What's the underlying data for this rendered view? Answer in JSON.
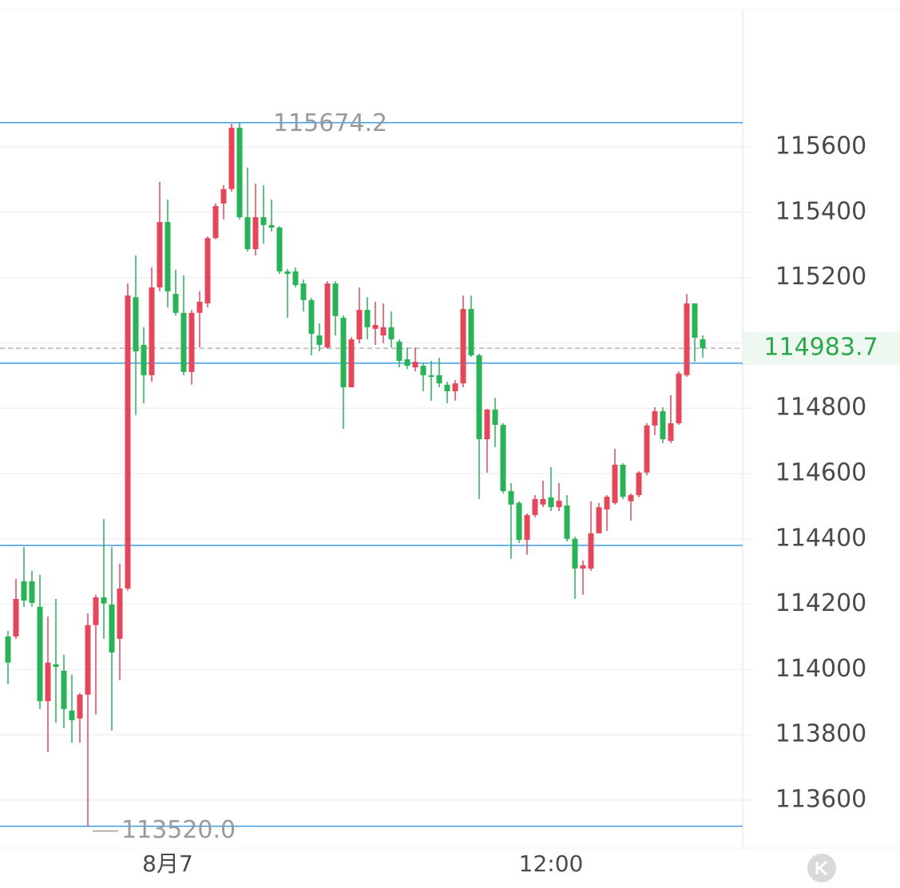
{
  "chart_data": {
    "type": "candlestick",
    "up_color": "#e5475a",
    "down_color": "#27b356",
    "line_color": "#3d9be9",
    "grid": true,
    "xlim": [
      -1,
      92
    ],
    "ylim": [
      113458,
      116050
    ],
    "yticks": [
      113600,
      113800,
      114000,
      114200,
      114400,
      114600,
      114800,
      115000,
      115200,
      115400,
      115600
    ],
    "xticks": [
      {
        "value": 20,
        "label": "8月7"
      },
      {
        "value": 68,
        "label": "12:00"
      }
    ],
    "hlines": [
      115674.2,
      114938,
      114380,
      113520
    ],
    "annotations": [
      {
        "value": 115674.2,
        "label": "115674.2"
      },
      {
        "value": 113520,
        "label": "113520.0"
      }
    ],
    "last_price": 114983.7,
    "x": [
      0,
      1,
      2,
      3,
      4,
      5,
      6,
      7,
      8,
      9,
      10,
      11,
      12,
      13,
      14,
      15,
      16,
      17,
      18,
      19,
      20,
      21,
      22,
      23,
      24,
      25,
      26,
      27,
      28,
      29,
      30,
      31,
      32,
      33,
      34,
      35,
      36,
      37,
      38,
      39,
      40,
      41,
      42,
      43,
      44,
      45,
      46,
      47,
      48,
      49,
      50,
      51,
      52,
      53,
      54,
      55,
      56,
      57,
      58,
      59,
      60,
      61,
      62,
      63,
      64,
      65,
      66,
      67,
      68,
      69,
      70,
      71,
      72,
      73,
      74,
      75,
      76,
      77,
      78,
      79,
      80,
      81,
      82,
      83,
      84,
      85,
      86,
      87
    ],
    "open": [
      114101,
      114101,
      114270,
      114270,
      114192,
      113903,
      114016,
      113996,
      113874,
      113850,
      113923,
      114136,
      114221,
      114199,
      114094,
      114248,
      115140,
      114994,
      114901,
      115170,
      115370,
      115150,
      115092,
      114911,
      115092,
      115121,
      115321,
      115427,
      115471,
      115659,
      115385,
      115287,
      115385,
      115361,
      115353,
      115219,
      115219,
      115182,
      115131,
      115023,
      114986,
      115182,
      115077,
      114864,
      115011,
      115101,
      115043,
      115023,
      115048,
      115004,
      114950,
      114925,
      114930,
      114901,
      114901,
      114872,
      114852,
      114876,
      115104,
      114962,
      114705,
      114796,
      114749,
      114546,
      114510,
      114397,
      114473,
      114505,
      114527,
      114497,
      114502,
      114400,
      114309,
      114309,
      114417,
      114490,
      114510,
      114627,
      114515,
      114534,
      114603,
      114747,
      114791,
      114700,
      114754,
      114901,
      115121,
      115011
    ],
    "high": [
      114118,
      114277,
      114375,
      114302,
      114290,
      114162,
      114216,
      114045,
      113984,
      113928,
      114172,
      114229,
      114461,
      114375,
      114324,
      115182,
      115268,
      115048,
      115231,
      115493,
      115439,
      115224,
      115207,
      115101,
      115158,
      115326,
      115427,
      115483,
      115671,
      115674.2,
      115537,
      115488,
      115483,
      115439,
      115358,
      115226,
      115231,
      115194,
      115138,
      115060,
      115189,
      115189,
      115084,
      115018,
      115170,
      115140,
      115126,
      115121,
      115096,
      115011,
      114986,
      114986,
      114938,
      114945,
      114955,
      114881,
      114886,
      115145,
      115145,
      114967,
      114798,
      114832,
      114754,
      114571,
      114515,
      114478,
      114534,
      114578,
      114620,
      114571,
      114534,
      114407,
      114334,
      114515,
      114510,
      114534,
      114676,
      114632,
      114539,
      114607,
      114754,
      114803,
      114803,
      114840,
      114913,
      115150,
      115121,
      115023
    ],
    "low": [
      113955,
      114094,
      114192,
      114192,
      113879,
      113747,
      113837,
      113820,
      113776,
      113776,
      113520,
      113862,
      114094,
      113813,
      113967,
      114241,
      114779,
      114815,
      114881,
      115158,
      115109,
      115084,
      114901,
      114872,
      114986,
      115109,
      115317,
      115378,
      115463,
      115378,
      115280,
      115268,
      115304,
      115341,
      115211,
      115077,
      115170,
      115096,
      114962,
      114974,
      114982,
      115023,
      114737,
      114864,
      114999,
      115011,
      114994,
      114999,
      114986,
      114925,
      114920,
      114913,
      114852,
      114823,
      114864,
      114815,
      114823,
      114864,
      114957,
      114522,
      114603,
      114681,
      114539,
      114339,
      114387,
      114351,
      114466,
      114497,
      114485,
      114485,
      114392,
      114216,
      114229,
      114302,
      114417,
      114424,
      114505,
      114522,
      114456,
      114527,
      114595,
      114718,
      114693,
      114693,
      114749,
      114896,
      114942,
      114955
    ],
    "close": [
      114021,
      114216,
      114211,
      114204,
      113903,
      114021,
      114008,
      113879,
      113845,
      113923,
      114136,
      114221,
      114202,
      114052,
      114248,
      115145,
      114974,
      114901,
      115170,
      115370,
      115158,
      115092,
      114911,
      115092,
      115126,
      115321,
      115419,
      115471,
      115659,
      115385,
      115287,
      115385,
      115361,
      115353,
      115219,
      115211,
      115177,
      115131,
      115028,
      114994,
      115182,
      115082,
      114864,
      115011,
      115101,
      115048,
      115055,
      115048,
      115011,
      114945,
      114930,
      114942,
      114901,
      114896,
      114876,
      114852,
      114876,
      115104,
      114962,
      114705,
      114796,
      114749,
      114546,
      114505,
      114397,
      114473,
      114522,
      114522,
      114497,
      114517,
      114400,
      114309,
      114319,
      114417,
      114497,
      114529,
      114627,
      114529,
      114534,
      114603,
      114747,
      114791,
      114705,
      114754,
      114906,
      115121,
      115016,
      114983.7
    ]
  }
}
